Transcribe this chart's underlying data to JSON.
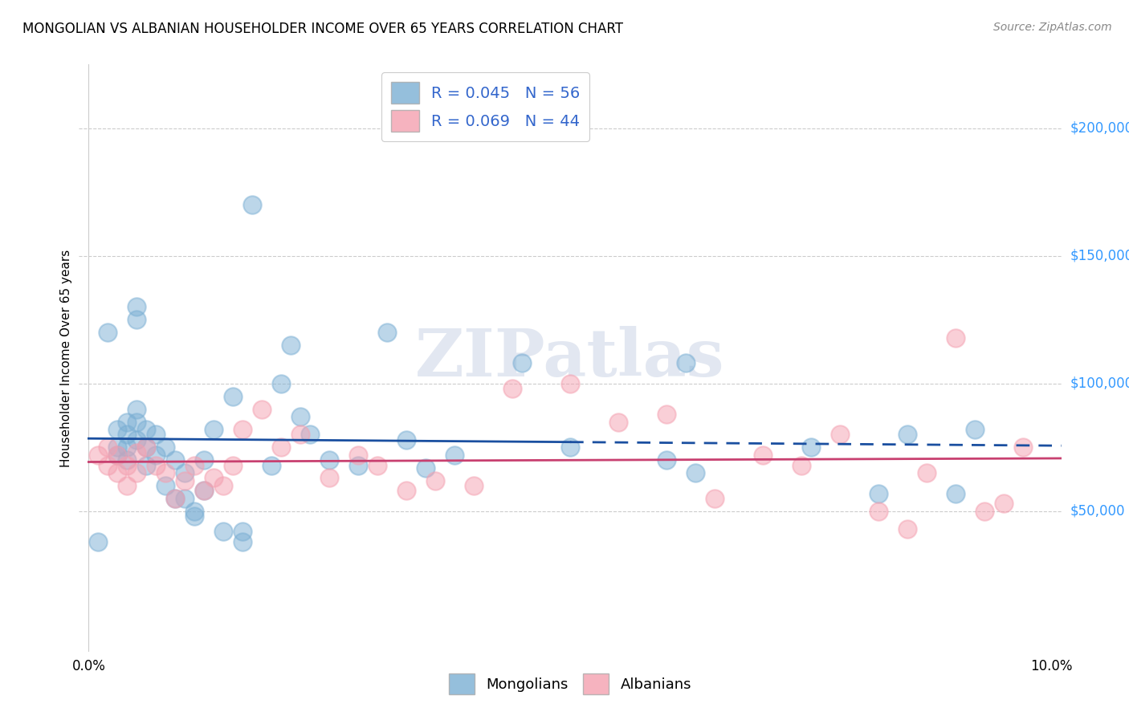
{
  "title": "MONGOLIAN VS ALBANIAN HOUSEHOLDER INCOME OVER 65 YEARS CORRELATION CHART",
  "source": "Source: ZipAtlas.com",
  "ylabel": "Householder Income Over 65 years",
  "right_ytick_labels": [
    "$50,000",
    "$100,000",
    "$150,000",
    "$200,000"
  ],
  "right_ytick_values": [
    50000,
    100000,
    150000,
    200000
  ],
  "ylim": [
    -5000,
    225000
  ],
  "xlim": [
    -0.001,
    0.101
  ],
  "mongolian_color": "#7bafd4",
  "albanian_color": "#f4a0b0",
  "mongolian_line_color": "#1a4fa0",
  "albanian_line_color": "#c84070",
  "watermark": "ZIPatlas",
  "mongolian_x": [
    0.001,
    0.002,
    0.003,
    0.003,
    0.003,
    0.004,
    0.004,
    0.004,
    0.004,
    0.005,
    0.005,
    0.005,
    0.005,
    0.005,
    0.006,
    0.006,
    0.006,
    0.007,
    0.007,
    0.008,
    0.008,
    0.009,
    0.009,
    0.01,
    0.01,
    0.011,
    0.011,
    0.012,
    0.012,
    0.013,
    0.014,
    0.015,
    0.016,
    0.016,
    0.017,
    0.019,
    0.02,
    0.021,
    0.022,
    0.023,
    0.025,
    0.028,
    0.031,
    0.033,
    0.035,
    0.038,
    0.045,
    0.05,
    0.06,
    0.062,
    0.063,
    0.075,
    0.082,
    0.085,
    0.09,
    0.092
  ],
  "mongolian_y": [
    38000,
    120000,
    82000,
    75000,
    72000,
    85000,
    80000,
    75000,
    70000,
    90000,
    85000,
    130000,
    125000,
    78000,
    82000,
    75000,
    68000,
    80000,
    72000,
    75000,
    60000,
    70000,
    55000,
    65000,
    55000,
    50000,
    48000,
    70000,
    58000,
    82000,
    42000,
    95000,
    42000,
    38000,
    170000,
    68000,
    100000,
    115000,
    87000,
    80000,
    70000,
    68000,
    120000,
    78000,
    67000,
    72000,
    108000,
    75000,
    70000,
    108000,
    65000,
    75000,
    57000,
    80000,
    57000,
    82000
  ],
  "albanian_x": [
    0.001,
    0.002,
    0.002,
    0.003,
    0.003,
    0.004,
    0.004,
    0.005,
    0.005,
    0.006,
    0.007,
    0.008,
    0.009,
    0.01,
    0.011,
    0.012,
    0.013,
    0.014,
    0.015,
    0.016,
    0.018,
    0.02,
    0.022,
    0.025,
    0.028,
    0.03,
    0.033,
    0.036,
    0.04,
    0.044,
    0.05,
    0.055,
    0.06,
    0.065,
    0.07,
    0.074,
    0.078,
    0.082,
    0.085,
    0.087,
    0.09,
    0.093,
    0.095,
    0.097
  ],
  "albanian_y": [
    72000,
    75000,
    68000,
    72000,
    65000,
    68000,
    60000,
    73000,
    65000,
    75000,
    68000,
    65000,
    55000,
    62000,
    68000,
    58000,
    63000,
    60000,
    68000,
    82000,
    90000,
    75000,
    80000,
    63000,
    72000,
    68000,
    58000,
    62000,
    60000,
    98000,
    100000,
    85000,
    88000,
    55000,
    72000,
    68000,
    80000,
    50000,
    43000,
    65000,
    118000,
    50000,
    53000,
    75000
  ]
}
